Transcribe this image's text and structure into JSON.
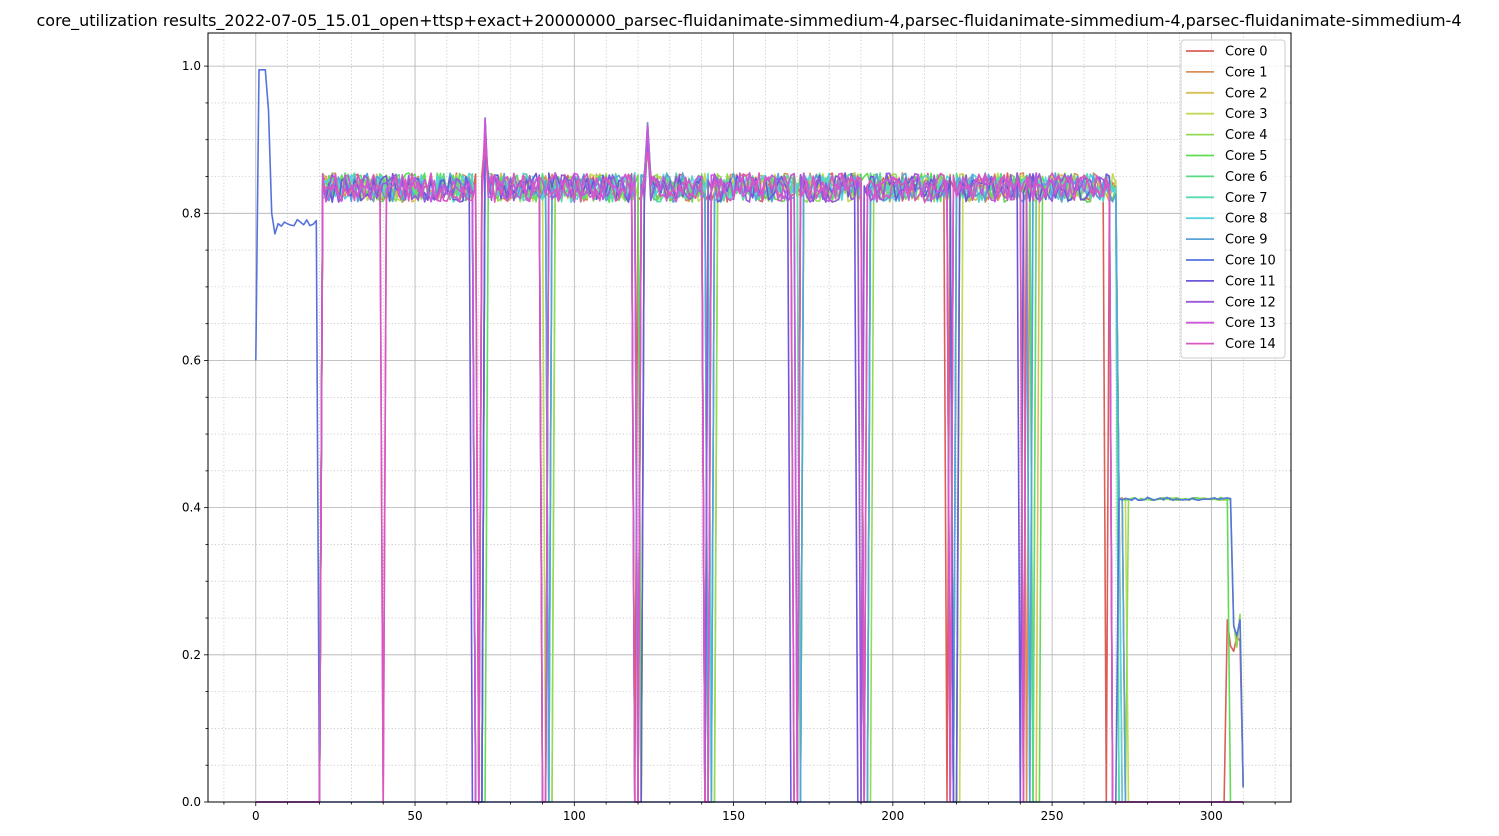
{
  "chart_data": {
    "type": "line",
    "title": "core_utilization results_2022-07-05_15.01_open+ttsp+exact+20000000_parsec-fluidanimate-simmedium-4,parsec-fluidanimate-simmedium-4,parsec-fluidanimate-simmedium-4",
    "xlabel": "",
    "ylabel": "",
    "xlim": [
      -15,
      325
    ],
    "ylim": [
      0.0,
      1.045
    ],
    "xticks": [
      0,
      50,
      100,
      150,
      200,
      250,
      300
    ],
    "xtick_labels": [
      "0",
      "50",
      "100",
      "150",
      "200",
      "250",
      "300"
    ],
    "yticks": [
      0.0,
      0.2,
      0.4,
      0.6,
      0.8,
      1.0
    ],
    "ytick_labels": [
      "0.0",
      "0.2",
      "0.4",
      "0.6",
      "0.8",
      "1.0"
    ],
    "grid": true,
    "minor_grid": true,
    "legend_position": "top-right",
    "colors": [
      "#db5f57",
      "#db8e57",
      "#dbbe57",
      "#c2db57",
      "#92db57",
      "#62db57",
      "#57db80",
      "#57dbaf",
      "#57d3db",
      "#57a3db",
      "#5773db",
      "#6c57db",
      "#9c57db",
      "#cb57db",
      "#db57c0"
    ],
    "series": [
      {
        "name": "Core 0",
        "active": [
          [
            20,
            40
          ],
          [
            40,
            69
          ],
          [
            71,
            91
          ],
          [
            92,
            118
          ],
          [
            120,
            140
          ],
          [
            141,
            169
          ],
          [
            170,
            190
          ],
          [
            192,
            216
          ],
          [
            218,
            240
          ],
          [
            241,
            266
          ],
          [
            268,
            272
          ]
        ],
        "tail": [
          [
            305,
            310
          ]
        ]
      },
      {
        "name": "Core 1",
        "active": [
          [
            20,
            40
          ],
          [
            41,
            69
          ],
          [
            71,
            91
          ],
          [
            92,
            119
          ],
          [
            121,
            141
          ],
          [
            143,
            168
          ],
          [
            171,
            190
          ],
          [
            193,
            218
          ],
          [
            220,
            241
          ],
          [
            243,
            267
          ],
          [
            268,
            271
          ]
        ],
        "tail": []
      },
      {
        "name": "Core 2",
        "active": [
          [
            20,
            40
          ],
          [
            41,
            68
          ],
          [
            72,
            89
          ],
          [
            93,
            120
          ],
          [
            122,
            140
          ],
          [
            145,
            170
          ],
          [
            170,
            189
          ],
          [
            193,
            218
          ],
          [
            221,
            240
          ],
          [
            246,
            269
          ],
          [
            269,
            272
          ]
        ],
        "tail": []
      },
      {
        "name": "Core 3",
        "active": [
          [
            20,
            40
          ],
          [
            41,
            68
          ],
          [
            72,
            90
          ],
          [
            94,
            120
          ],
          [
            122,
            141
          ],
          [
            144,
            170
          ],
          [
            172,
            190
          ],
          [
            193,
            217
          ],
          [
            222,
            242
          ],
          [
            245,
            270
          ],
          [
            270,
            273
          ]
        ],
        "tail": []
      },
      {
        "name": "Core 4",
        "active": [
          [
            20,
            40
          ],
          [
            41,
            68
          ],
          [
            72,
            91
          ],
          [
            94,
            119
          ],
          [
            121,
            140
          ],
          [
            145,
            170
          ],
          [
            172,
            190
          ],
          [
            194,
            218
          ],
          [
            220,
            243
          ],
          [
            244,
            270
          ],
          [
            274,
            306
          ]
        ],
        "tail": [
          [
            306,
            310
          ]
        ]
      },
      {
        "name": "Core 5",
        "active": [
          [
            20,
            40
          ],
          [
            41,
            68
          ],
          [
            73,
            92
          ],
          [
            93,
            120
          ],
          [
            122,
            142
          ],
          [
            143,
            170
          ],
          [
            171,
            192
          ],
          [
            193,
            218
          ],
          [
            221,
            243
          ],
          [
            247,
            270
          ],
          [
            271,
            305
          ]
        ],
        "tail": []
      },
      {
        "name": "Core 6",
        "active": [
          [
            20,
            40
          ],
          [
            41,
            68
          ],
          [
            72,
            92
          ],
          [
            93,
            118
          ],
          [
            121,
            141
          ],
          [
            143,
            169
          ],
          [
            172,
            190
          ],
          [
            193,
            218
          ],
          [
            220,
            243
          ],
          [
            245,
            270
          ]
        ],
        "tail": []
      },
      {
        "name": "Core 7",
        "active": [
          [
            20,
            40
          ],
          [
            41,
            68
          ],
          [
            72,
            91
          ],
          [
            93,
            119
          ],
          [
            121,
            142
          ],
          [
            144,
            170
          ],
          [
            172,
            190
          ],
          [
            193,
            217
          ],
          [
            219,
            242
          ],
          [
            244,
            270
          ]
        ],
        "tail": []
      },
      {
        "name": "Core 8",
        "active": [
          [
            20,
            40
          ],
          [
            41,
            68
          ],
          [
            72,
            91
          ],
          [
            93,
            119
          ],
          [
            121,
            142
          ],
          [
            144,
            170
          ],
          [
            171,
            190
          ],
          [
            193,
            218
          ],
          [
            220,
            242
          ],
          [
            243,
            271
          ]
        ],
        "tail": []
      },
      {
        "name": "Core 9",
        "active": [
          [
            20,
            40
          ],
          [
            41,
            68
          ],
          [
            72,
            91
          ],
          [
            93,
            119
          ],
          [
            121,
            141
          ],
          [
            144,
            169
          ],
          [
            172,
            190
          ],
          [
            193,
            218
          ],
          [
            220,
            242
          ],
          [
            244,
            272
          ]
        ],
        "tail": []
      },
      {
        "name": "Core 10",
        "active": [
          [
            271,
            306
          ]
        ],
        "tail": [
          [
            306,
            310
          ]
        ],
        "startup": true
      },
      {
        "name": "Core 11",
        "active": [
          [
            20,
            40
          ],
          [
            41,
            67
          ],
          [
            72,
            89
          ],
          [
            92,
            118
          ],
          [
            122,
            140
          ],
          [
            142,
            167
          ],
          [
            171,
            188
          ],
          [
            191,
            218
          ],
          [
            221,
            239
          ],
          [
            241,
            268
          ]
        ],
        "tail": []
      },
      {
        "name": "Core 12",
        "active": [
          [
            21,
            40
          ],
          [
            41,
            68
          ],
          [
            71,
            89
          ],
          [
            92,
            118
          ],
          [
            121,
            140
          ],
          [
            142,
            168
          ],
          [
            171,
            189
          ],
          [
            191,
            217
          ],
          [
            219,
            240
          ],
          [
            242,
            268
          ]
        ],
        "tail": []
      },
      {
        "name": "Core 13",
        "active": [
          [
            20,
            39
          ],
          [
            41,
            68
          ],
          [
            71,
            90
          ],
          [
            91,
            119
          ],
          [
            121,
            140
          ],
          [
            143,
            169
          ],
          [
            171,
            190
          ],
          [
            192,
            217
          ],
          [
            219,
            241
          ],
          [
            242,
            268
          ]
        ],
        "tail": []
      },
      {
        "name": "Core 14",
        "active": [
          [
            20,
            39
          ],
          [
            41,
            69
          ],
          [
            71,
            89
          ],
          [
            92,
            118
          ],
          [
            121,
            140
          ],
          [
            143,
            168
          ],
          [
            171,
            190
          ],
          [
            192,
            217
          ],
          [
            219,
            240
          ],
          [
            242,
            268
          ]
        ],
        "tail": []
      }
    ]
  }
}
